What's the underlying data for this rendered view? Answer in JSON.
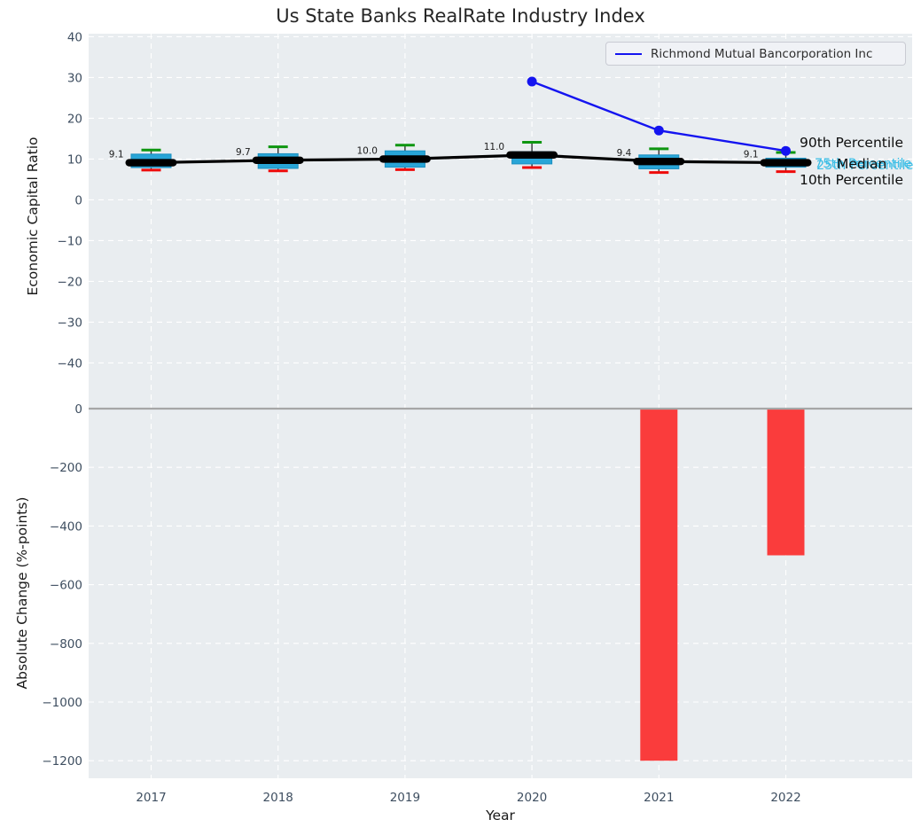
{
  "title": "Us State Banks RealRate Industry Index",
  "legend": {
    "label": "Richmond Mutual Bancorporation Inc"
  },
  "axes": {
    "x": {
      "label": "Year",
      "ticks": [
        "2017",
        "2018",
        "2019",
        "2020",
        "2021",
        "2022"
      ]
    },
    "top": {
      "label": "Economic Capital Ratio",
      "ticks": [
        40,
        30,
        20,
        10,
        0,
        -10,
        -20,
        -30,
        -40
      ]
    },
    "bottom": {
      "label": "Absolute Change (%-points)",
      "ticks": [
        0,
        -200,
        -400,
        -600,
        -800,
        -1000,
        -1200
      ]
    }
  },
  "annotations": {
    "p90": "90th Percentile",
    "median": "Median",
    "p75": "75th Percentile",
    "p25": "25th Percentile",
    "p10": "10th Percentile"
  },
  "colors": {
    "box": "#28a5d7",
    "box_edge": "#1b8fc0",
    "cyan_text": "#3cbee6",
    "green": "#0e9610",
    "red": "#ee0a0a",
    "bar": "#fa3c3c",
    "blue": "#1414f0",
    "median": "#000000",
    "plot_bg": "#e9edf0",
    "grid": "#ffffff",
    "tick": "#3e4e60",
    "zero_line": "#a6a6a6",
    "whisker": "#333333",
    "value_label": "#1c1c1c"
  },
  "chart_data": [
    {
      "type": "boxplot",
      "title": "Us State Banks RealRate Industry Index",
      "ylabel": "Economic Capital Ratio",
      "categories": [
        2017,
        2018,
        2019,
        2020,
        2021,
        2022
      ],
      "median": [
        9.1,
        9.7,
        10.0,
        11.0,
        9.4,
        9.1
      ],
      "p90": [
        12.2,
        13.0,
        13.4,
        14.1,
        12.5,
        11.6
      ],
      "p75": [
        11.2,
        11.3,
        12.0,
        11.8,
        11.0,
        10.2
      ],
      "p25": [
        7.9,
        7.7,
        8.0,
        8.8,
        7.6,
        8.0
      ],
      "p10": [
        7.3,
        7.1,
        7.4,
        7.9,
        6.7,
        6.9
      ],
      "median_labels": [
        "9.1",
        "9.7",
        "10.0",
        "11.0",
        "9.4",
        "9.1"
      ],
      "ylim": [
        -45,
        41
      ],
      "grid": true,
      "legend_position": "upper right"
    },
    {
      "type": "line",
      "name": "Richmond Mutual Bancorporation Inc",
      "x": [
        2020,
        2021,
        2022
      ],
      "y": [
        29,
        17,
        12
      ],
      "marker": "circle"
    },
    {
      "type": "bar",
      "xlabel": "Year",
      "ylabel": "Absolute Change (%-points)",
      "x": [
        2021,
        2022
      ],
      "values": [
        -1200,
        -500
      ],
      "ylim": [
        -1260,
        10
      ]
    }
  ]
}
